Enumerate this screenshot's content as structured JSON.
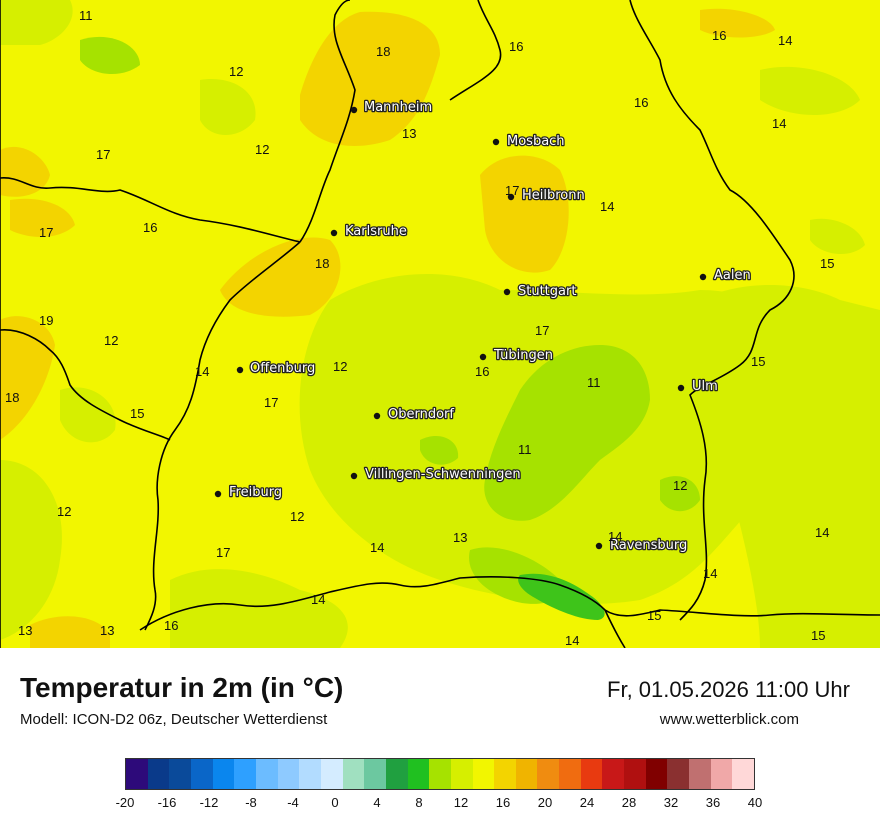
{
  "title": "Temperatur in 2m (in °C)",
  "subtitle": "Modell: ICON-D2 06z, Deutscher Wetterdienst",
  "datetime": "Fr, 01.05.2026 11:00 Uhr",
  "website": "www.wetterblick.com",
  "colors": {
    "base": "#f2f600",
    "warm": "#f3d400",
    "cool": "#d6ef00",
    "cooler": "#a6e200",
    "coolest": "#3ec41a",
    "border": "#000000"
  },
  "cities": [
    {
      "name": "Mannheim"
    },
    {
      "name": "Mosbach"
    },
    {
      "name": "Heilbronn"
    },
    {
      "name": "Karlsruhe"
    },
    {
      "name": "Aalen"
    },
    {
      "name": "Stuttgart"
    },
    {
      "name": "Tübingen"
    },
    {
      "name": "Offenburg"
    },
    {
      "name": "Ulm"
    },
    {
      "name": "Oberndorf"
    },
    {
      "name": "Villingen-Schwenningen"
    },
    {
      "name": "Freiburg"
    },
    {
      "name": "Ravensburg"
    }
  ],
  "values": [
    "11",
    "18",
    "16",
    "16",
    "14",
    "12",
    "13",
    "16",
    "17",
    "12",
    "14",
    "17",
    "16",
    "14",
    "17",
    "18",
    "15",
    "19",
    "12",
    "17",
    "14",
    "12",
    "16",
    "11",
    "15",
    "18",
    "17",
    "15",
    "11",
    "12",
    "12",
    "12",
    "14",
    "17",
    "14",
    "13",
    "14",
    "13",
    "13",
    "16",
    "15",
    "14",
    "15"
  ],
  "scale": {
    "colors": [
      "#2d0a7a",
      "#0a3a8a",
      "#0a4a9a",
      "#0a66c8",
      "#0a86ee",
      "#2ea0ff",
      "#6cbcff",
      "#8ecaff",
      "#b2dcff",
      "#d4ecff",
      "#a0e0c0",
      "#6cc8a0",
      "#20a040",
      "#20c020",
      "#a6e200",
      "#d6ef00",
      "#f2f600",
      "#f3d400",
      "#f0b400",
      "#f08c10",
      "#f06c10",
      "#e83a10",
      "#c81818",
      "#b01010",
      "#800000",
      "#8a3030",
      "#c07070",
      "#f0a8a8",
      "#ffd8d8"
    ],
    "labels": [
      "-20",
      "-16",
      "-12",
      "-8",
      "-4",
      "0",
      "4",
      "8",
      "12",
      "16",
      "20",
      "24",
      "28",
      "32",
      "36",
      "40"
    ]
  }
}
